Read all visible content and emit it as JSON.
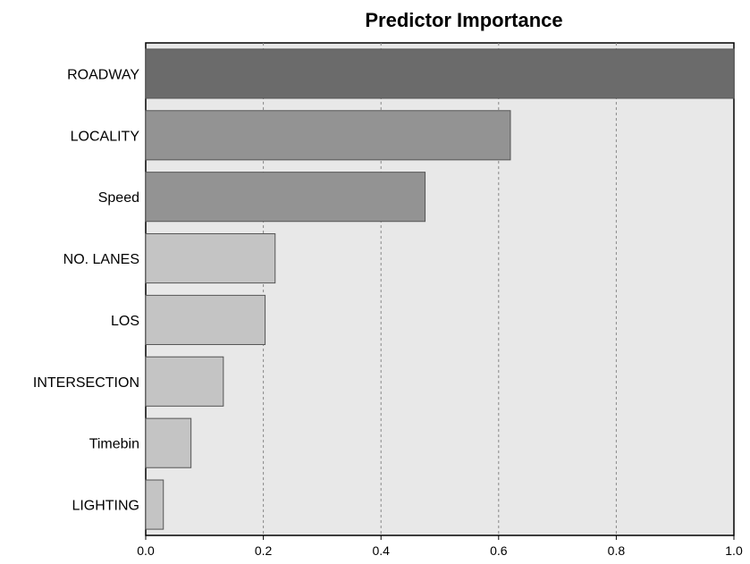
{
  "chart_data": {
    "type": "bar",
    "orientation": "horizontal",
    "title": "Predictor Importance",
    "xlabel": "",
    "ylabel": "",
    "categories": [
      "ROADWAY",
      "LOCALITY",
      "Speed",
      "NO. LANES",
      "LOS",
      "INTERSECTION",
      "Timebin",
      "LIGHTING"
    ],
    "values": [
      1.0,
      0.62,
      0.475,
      0.22,
      0.203,
      0.132,
      0.077,
      0.03
    ],
    "xlim": [
      0,
      1.0
    ],
    "xticks": [
      "0.0",
      "0.2",
      "0.4",
      "0.6",
      "0.8",
      "1.0"
    ],
    "grid": "vertical dashed",
    "legend": "none",
    "colors": {
      "plot_background": "#e8e8e8",
      "gridline": "#888888",
      "bar_fills": [
        "#6b6b6b",
        "#939393",
        "#939393",
        "#c4c4c4",
        "#c4c4c4",
        "#c4c4c4",
        "#c4c4c4",
        "#c4c4c4"
      ],
      "bar_stroke": "#555555"
    }
  }
}
